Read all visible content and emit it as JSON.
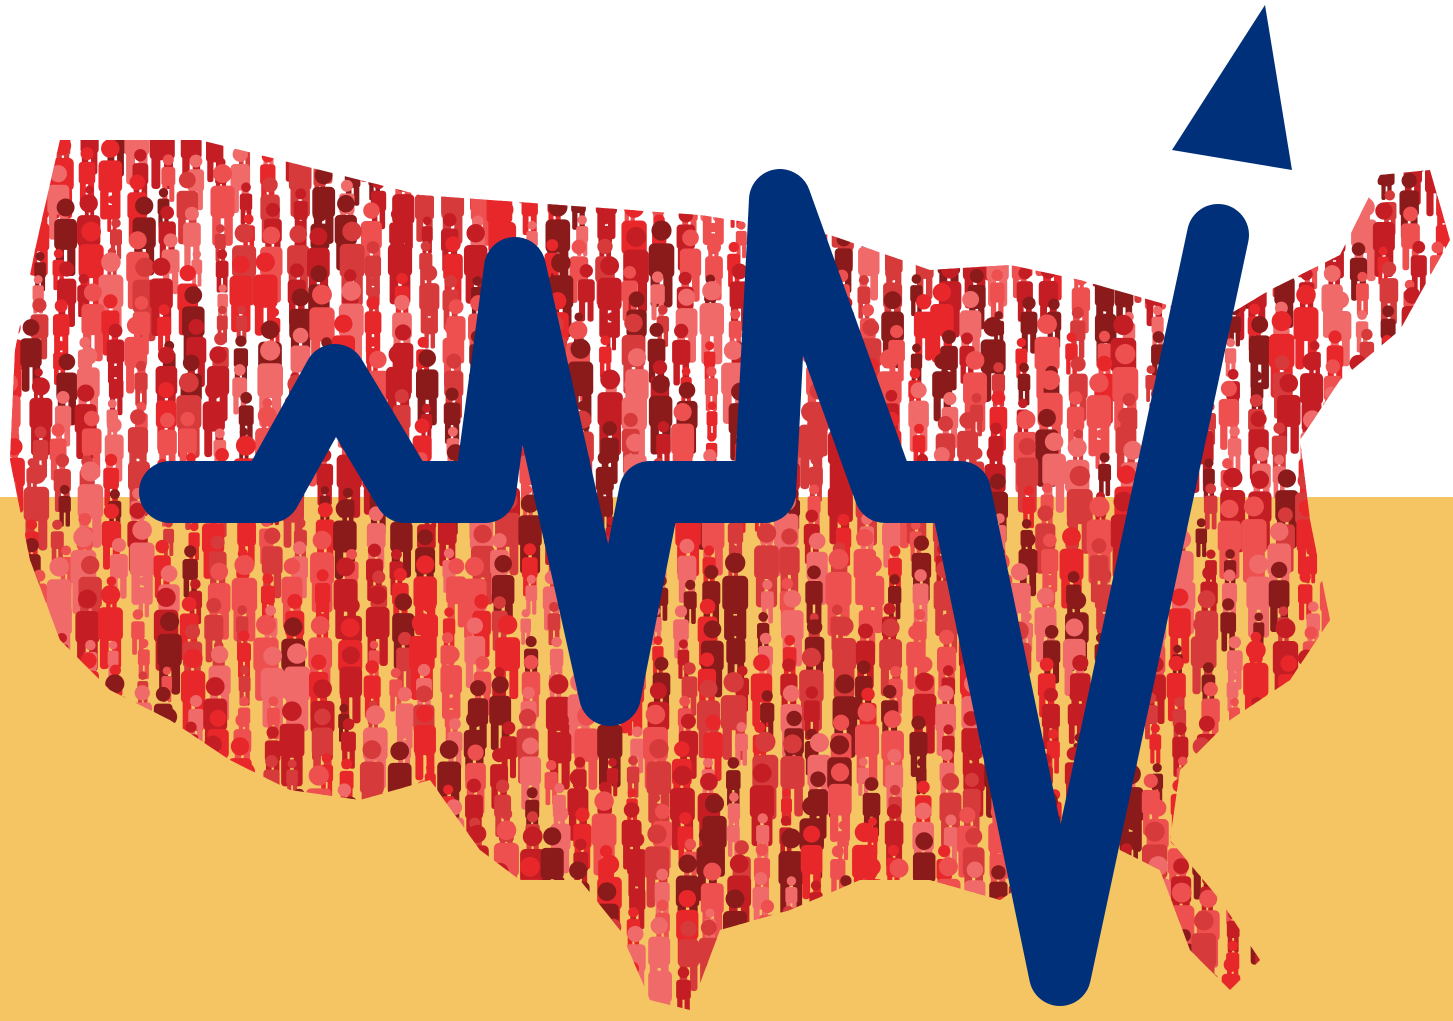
{
  "colors": {
    "top_background": "#ffffff",
    "bottom_background": "#f5c563",
    "people_palette": [
      "#e8272b",
      "#c41e24",
      "#8b1a1a",
      "#ee5050",
      "#d63a3a",
      "#f06a6a"
    ],
    "trend_line": "#00307a"
  },
  "icons": {
    "people": "person-figure-icon",
    "trend": "trend-line-arrow-icon"
  }
}
